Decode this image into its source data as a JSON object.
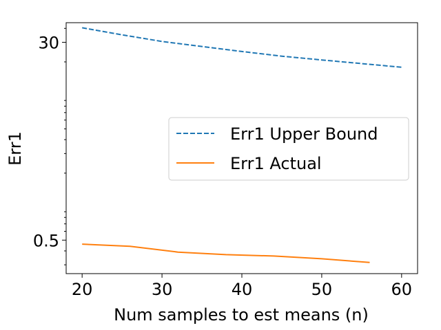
{
  "chart_data": {
    "type": "line",
    "xlabel": "Num samples to est means (n)",
    "ylabel": "Err1",
    "yscale": "log",
    "xlim": [
      18,
      62
    ],
    "ylim": [
      0.25,
      45
    ],
    "xticks": [
      20,
      30,
      40,
      50,
      60
    ],
    "yticks": [
      0.5,
      30
    ],
    "grid": false,
    "legend_position": "center-right",
    "series": [
      {
        "name": "Err1 Upper Bound",
        "style": "dashed",
        "color": "#1f77b4",
        "x": [
          20,
          25,
          30,
          35,
          40,
          45,
          50,
          55,
          60
        ],
        "y": [
          40.5,
          35.0,
          30.5,
          27.5,
          24.8,
          22.5,
          20.8,
          19.3,
          17.9
        ]
      },
      {
        "name": "Err1 Actual",
        "style": "solid",
        "color": "#ff7f0e",
        "x": [
          20,
          26,
          32,
          38,
          44,
          50,
          56
        ],
        "y": [
          0.46,
          0.44,
          0.39,
          0.37,
          0.36,
          0.34,
          0.315
        ]
      }
    ]
  }
}
